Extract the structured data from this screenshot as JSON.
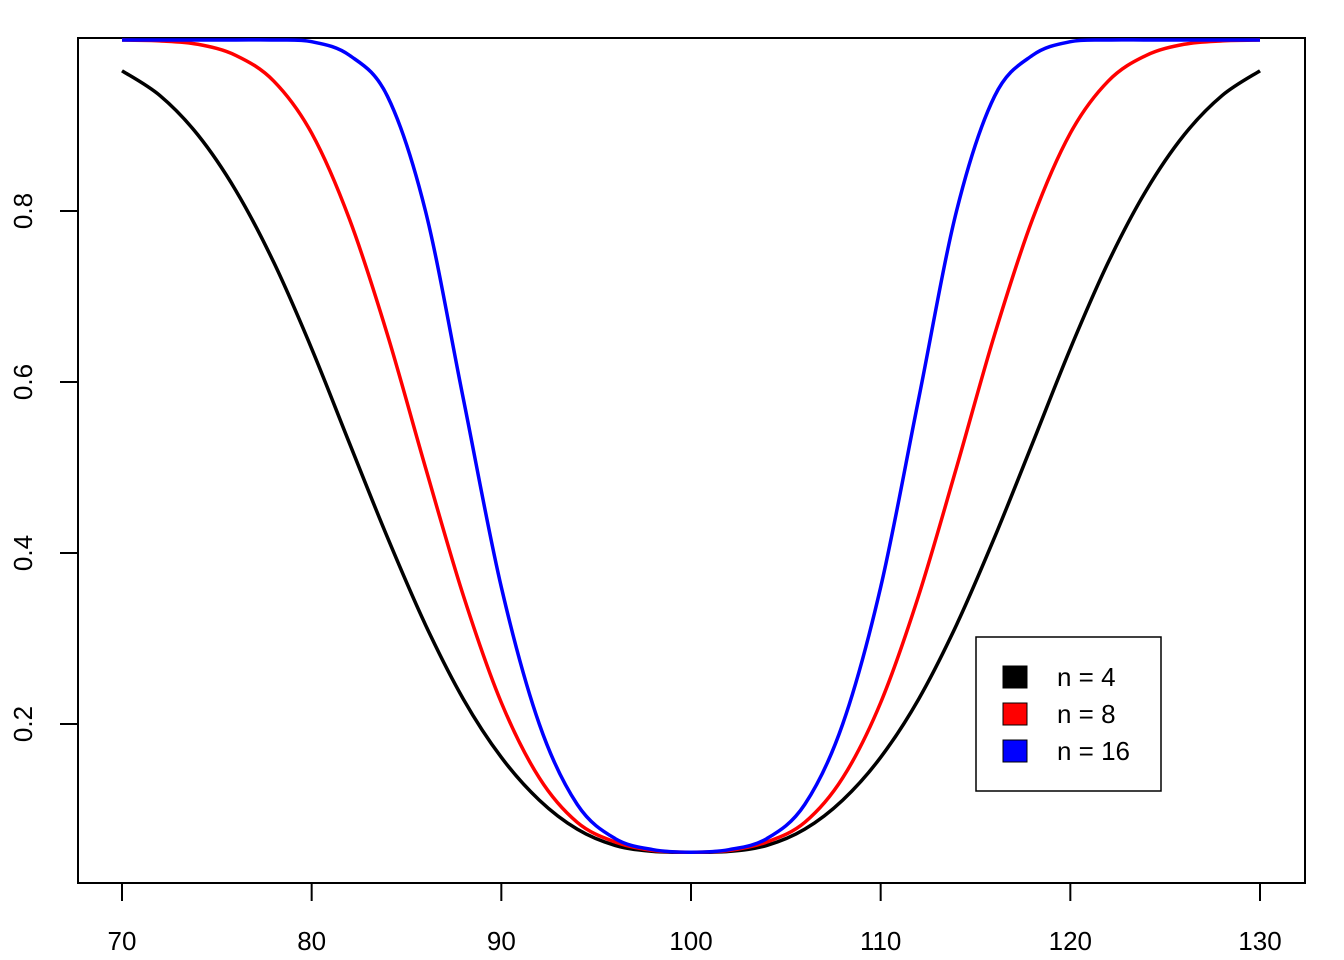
{
  "chart_data": {
    "type": "line",
    "xlim": [
      70,
      130
    ],
    "ylim": [
      0.05,
      0.99
    ],
    "x_ticks": [
      "70",
      "80",
      "90",
      "100",
      "110",
      "120",
      "130"
    ],
    "y_ticks": [
      "0.2",
      "0.4",
      "0.6",
      "0.8"
    ],
    "grid": false,
    "legend_position": "bottom-right",
    "x": [
      70,
      72,
      74,
      76,
      78,
      80,
      82,
      84,
      86,
      88,
      90,
      92,
      94,
      96,
      98,
      100,
      102,
      104,
      106,
      108,
      110,
      112,
      114,
      116,
      118,
      120,
      122,
      124,
      126,
      128,
      130
    ],
    "series": [
      {
        "name": "n = 4",
        "color": "#000000",
        "values": [
          0.964,
          0.935,
          0.889,
          0.824,
          0.74,
          0.639,
          0.528,
          0.418,
          0.316,
          0.229,
          0.161,
          0.111,
          0.077,
          0.058,
          0.051,
          0.05,
          0.051,
          0.058,
          0.077,
          0.111,
          0.161,
          0.229,
          0.316,
          0.418,
          0.528,
          0.639,
          0.74,
          0.824,
          0.889,
          0.935,
          0.964
        ]
      },
      {
        "name": "n = 8",
        "color": "#ff0000",
        "values": [
          1.0,
          0.999,
          0.995,
          0.982,
          0.952,
          0.891,
          0.79,
          0.655,
          0.5,
          0.35,
          0.225,
          0.137,
          0.085,
          0.062,
          0.052,
          0.05,
          0.052,
          0.062,
          0.085,
          0.137,
          0.225,
          0.35,
          0.5,
          0.655,
          0.79,
          0.891,
          0.952,
          0.982,
          0.995,
          0.999,
          1.0
        ]
      },
      {
        "name": "n = 16",
        "color": "#0000ff",
        "values": [
          1.0,
          1.0,
          1.0,
          1.0,
          1.0,
          0.998,
          0.982,
          0.934,
          0.8,
          0.58,
          0.36,
          0.2,
          0.106,
          0.066,
          0.053,
          0.05,
          0.053,
          0.066,
          0.106,
          0.2,
          0.36,
          0.58,
          0.8,
          0.934,
          0.982,
          0.998,
          1.0,
          1.0,
          1.0,
          1.0,
          1.0
        ]
      }
    ]
  }
}
